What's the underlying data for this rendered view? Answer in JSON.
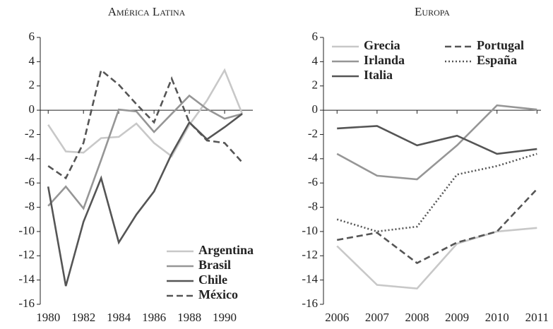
{
  "chart_data": [
    {
      "type": "line",
      "title": "América Latina",
      "x": [
        1980,
        1981,
        1982,
        1983,
        1984,
        1985,
        1986,
        1987,
        1988,
        1989,
        1990,
        1991
      ],
      "xlim": [
        1979.55,
        1991.6
      ],
      "xticks": [
        1980,
        1982,
        1984,
        1986,
        1988,
        1990
      ],
      "ylim": [
        -16,
        6
      ],
      "yticks": [
        -16,
        -14,
        -12,
        -10,
        -8,
        -6,
        -4,
        -2,
        0,
        2,
        4,
        6
      ],
      "legend": "lower right",
      "legend_ncol": 1,
      "series": [
        {
          "name": "Argentina",
          "color": "#c8c8c8",
          "style": "solid",
          "values": [
            -1.2,
            -3.4,
            -3.5,
            -2.3,
            -2.2,
            -1.1,
            -2.7,
            -3.8,
            -1.2,
            0.8,
            3.3,
            -0.3
          ]
        },
        {
          "name": "Brasil",
          "color": "#969696",
          "style": "solid",
          "values": [
            -7.9,
            -6.3,
            -8.1,
            -4.1,
            0.05,
            -0.1,
            -1.8,
            -0.3,
            1.2,
            0.1,
            -0.7,
            -0.3
          ]
        },
        {
          "name": "Chile",
          "color": "#555555",
          "style": "solid",
          "values": [
            -6.3,
            -14.5,
            -9.2,
            -5.6,
            -10.9,
            -8.6,
            -6.7,
            -3.6,
            -1.0,
            -2.4,
            -1.4,
            -0.3
          ]
        },
        {
          "name": "México",
          "color": "#555555",
          "style": "dashed",
          "values": [
            -4.6,
            -5.6,
            -2.7,
            3.3,
            2.1,
            0.5,
            -1.0,
            2.6,
            -1.0,
            -2.5,
            -2.7,
            -4.3
          ]
        }
      ]
    },
    {
      "type": "line",
      "title": "Europa",
      "x": [
        2006,
        2007,
        2008,
        2009,
        2010,
        2011
      ],
      "xlim": [
        2005.66,
        2011.1
      ],
      "xticks": [
        2006,
        2007,
        2008,
        2009,
        2010,
        2011
      ],
      "ylim": [
        -16,
        6
      ],
      "yticks": [
        -16,
        -14,
        -12,
        -10,
        -8,
        -6,
        -4,
        -2,
        0,
        2,
        4,
        6
      ],
      "legend": "upper left",
      "legend_ncol": 2,
      "series": [
        {
          "name": "Grecia",
          "color": "#c8c8c8",
          "style": "solid",
          "values": [
            -11.2,
            -14.4,
            -14.7,
            -11.0,
            -10.0,
            -9.7
          ]
        },
        {
          "name": "Irlanda",
          "color": "#969696",
          "style": "solid",
          "values": [
            -3.6,
            -5.4,
            -5.7,
            -2.9,
            0.4,
            0.05
          ]
        },
        {
          "name": "Italia",
          "color": "#555555",
          "style": "solid",
          "values": [
            -1.5,
            -1.3,
            -2.9,
            -2.1,
            -3.6,
            -3.2
          ]
        },
        {
          "name": "Portugal",
          "color": "#555555",
          "style": "dashed",
          "values": [
            -10.7,
            -10.1,
            -12.6,
            -10.9,
            -10.0,
            -6.5
          ]
        },
        {
          "name": "España",
          "color": "#555555",
          "style": "dotted",
          "values": [
            -9.0,
            -10.0,
            -9.6,
            -5.3,
            -4.6,
            -3.6
          ]
        }
      ]
    }
  ]
}
